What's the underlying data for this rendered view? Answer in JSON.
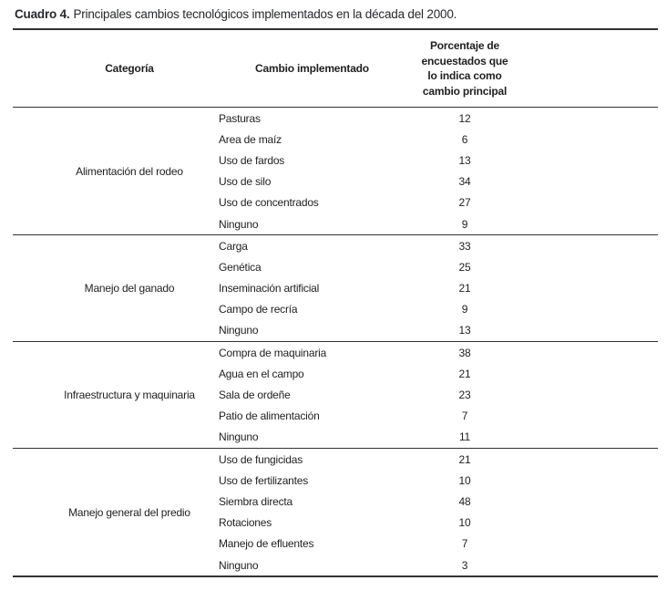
{
  "title": {
    "prefix": "Cuadro 4.",
    "text": "Principales cambios tecnológicos implementados en la década del 2000."
  },
  "table": {
    "col_headers": {
      "category": "Categoría",
      "change": "Cambio implementado",
      "percentage": "Porcentaje de encuestados que lo indica como cambio principal"
    },
    "sections": [
      {
        "category": "Alimentación del rodeo",
        "rows": [
          {
            "change": "Pasturas",
            "pct": "12"
          },
          {
            "change": "Area de maíz",
            "pct": "6"
          },
          {
            "change": "Uso de fardos",
            "pct": "13"
          },
          {
            "change": "Uso de silo",
            "pct": "34"
          },
          {
            "change": "Uso de concentrados",
            "pct": "27"
          },
          {
            "change": "Ninguno",
            "pct": "9"
          }
        ]
      },
      {
        "category": "Manejo del ganado",
        "rows": [
          {
            "change": "Carga",
            "pct": "33"
          },
          {
            "change": "Genética",
            "pct": "25"
          },
          {
            "change": "Inseminación artificial",
            "pct": "21"
          },
          {
            "change": "Campo de recría",
            "pct": "9"
          },
          {
            "change": "Ninguno",
            "pct": "13"
          }
        ]
      },
      {
        "category": "Infraestructura y maquinaria",
        "rows": [
          {
            "change": "Compra de maquinaria",
            "pct": "38"
          },
          {
            "change": "Agua en el campo",
            "pct": "21"
          },
          {
            "change": "Sala de ordeñe",
            "pct": "23"
          },
          {
            "change": "Patio de alimentación",
            "pct": "7"
          },
          {
            "change": "Ninguno",
            "pct": "11"
          }
        ]
      },
      {
        "category": "Manejo general del predio",
        "rows": [
          {
            "change": "Uso de fungicidas",
            "pct": "21"
          },
          {
            "change": "Uso de fertilizantes",
            "pct": "10"
          },
          {
            "change": "Siembra directa",
            "pct": "48"
          },
          {
            "change": "Rotaciones",
            "pct": "10"
          },
          {
            "change": "Manejo de efluentes",
            "pct": "7"
          },
          {
            "change": "Ninguno",
            "pct": "3"
          }
        ]
      }
    ]
  },
  "colors": {
    "background": "#ffffff",
    "text": "#1f1f1f",
    "rule": "#333333"
  }
}
